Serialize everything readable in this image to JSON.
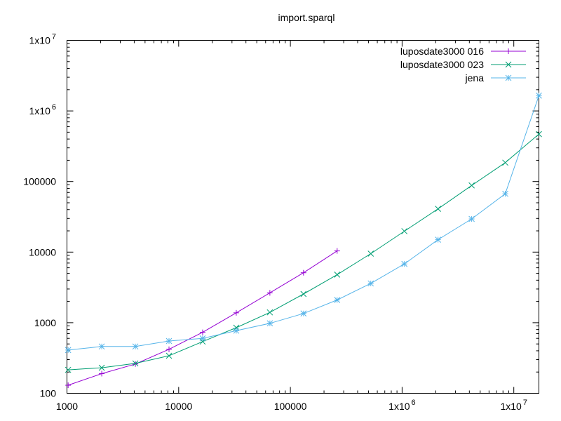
{
  "chart_data": {
    "type": "line",
    "title": "import.sparql",
    "xlabel": "",
    "ylabel": "",
    "x_scale": "log",
    "y_scale": "log",
    "xlim": [
      1000,
      16777216
    ],
    "ylim": [
      100,
      10000000
    ],
    "grid": false,
    "legend_position": "top-right",
    "x_ticks": [
      {
        "value": 1000,
        "label": "1000",
        "sup": ""
      },
      {
        "value": 10000,
        "label": "10000",
        "sup": ""
      },
      {
        "value": 100000,
        "label": "100000",
        "sup": ""
      },
      {
        "value": 1000000,
        "label": "1x10",
        "sup": "6"
      },
      {
        "value": 10000000,
        "label": "1x10",
        "sup": "7"
      }
    ],
    "y_ticks": [
      {
        "value": 100,
        "label": "100",
        "sup": ""
      },
      {
        "value": 1000,
        "label": "1000",
        "sup": ""
      },
      {
        "value": 10000,
        "label": "10000",
        "sup": ""
      },
      {
        "value": 100000,
        "label": "100000",
        "sup": ""
      },
      {
        "value": 1000000,
        "label": "1x10",
        "sup": "6"
      },
      {
        "value": 10000000,
        "label": "1x10",
        "sup": "7"
      }
    ],
    "series": [
      {
        "name": "luposdate3000 016",
        "color": "#9400d3",
        "marker": "plus",
        "x": [
          1024,
          2048,
          4096,
          8192,
          16384,
          32768,
          65536,
          131072,
          262144
        ],
        "y": [
          130,
          190,
          260,
          420,
          730,
          1380,
          2650,
          5100,
          10400
        ]
      },
      {
        "name": "luposdate3000 023",
        "color": "#009e73",
        "marker": "cross",
        "x": [
          1024,
          2048,
          4096,
          8192,
          16384,
          32768,
          65536,
          131072,
          262144,
          524288,
          1048576,
          2097152,
          4194304,
          8388608,
          16777216
        ],
        "y": [
          215,
          230,
          265,
          340,
          540,
          850,
          1400,
          2550,
          4800,
          9500,
          19800,
          41000,
          88000,
          185000,
          470000
        ]
      },
      {
        "name": "jena",
        "color": "#56b4e9",
        "marker": "star",
        "x": [
          1024,
          2048,
          4096,
          8192,
          16384,
          32768,
          65536,
          131072,
          262144,
          524288,
          1048576,
          2097152,
          4194304,
          8388608,
          16777216
        ],
        "y": [
          410,
          460,
          460,
          550,
          600,
          770,
          980,
          1350,
          2100,
          3600,
          6800,
          15000,
          29500,
          67000,
          1650000
        ]
      }
    ]
  }
}
